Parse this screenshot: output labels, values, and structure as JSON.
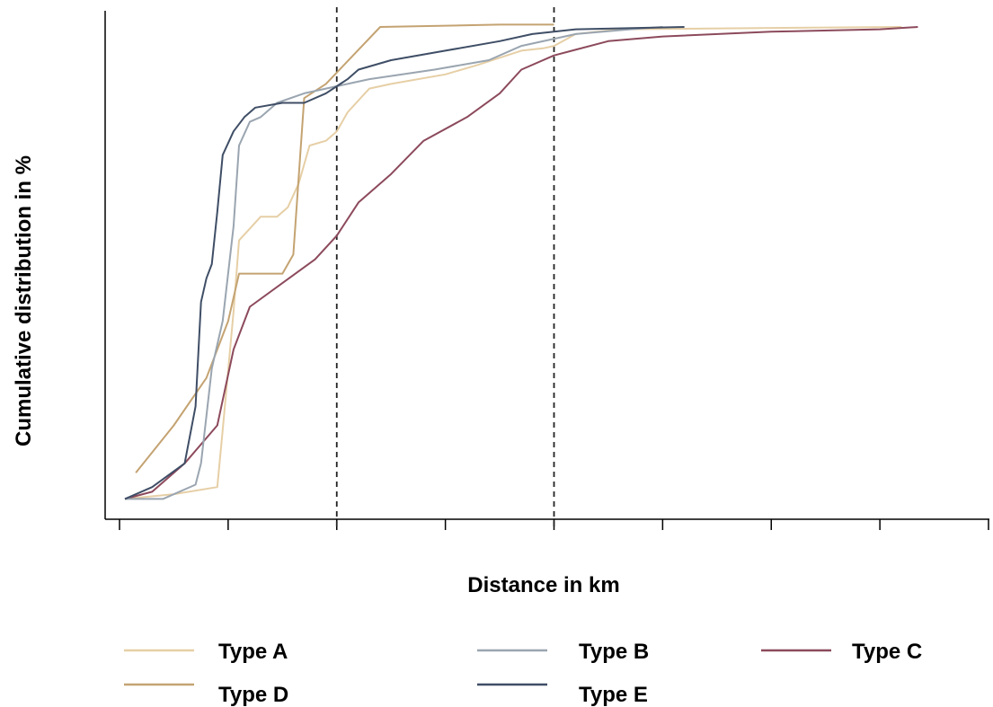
{
  "chart_data": {
    "type": "line",
    "subtype": "cumulative-distribution",
    "title": "",
    "xlabel": "Distance in km",
    "ylabel": "Cumulative distribution in %",
    "x_ticks": 9,
    "x_tick_labels": [],
    "y_tick_labels": [],
    "xlim": [
      0,
      8
    ],
    "ylim": [
      0,
      100
    ],
    "reference_lines_x": [
      2,
      4
    ],
    "grid": false,
    "legend_placement": "bottom",
    "series": [
      {
        "name": "Type A",
        "color": "#E6CFA6",
        "points": [
          [
            0.05,
            0.5
          ],
          [
            0.5,
            1.5
          ],
          [
            0.9,
            3
          ],
          [
            0.95,
            15
          ],
          [
            1.05,
            40
          ],
          [
            1.1,
            55
          ],
          [
            1.3,
            60
          ],
          [
            1.45,
            60
          ],
          [
            1.55,
            62
          ],
          [
            1.65,
            67
          ],
          [
            1.75,
            75
          ],
          [
            1.9,
            76
          ],
          [
            2.0,
            78
          ],
          [
            2.1,
            82
          ],
          [
            2.3,
            87
          ],
          [
            2.5,
            88
          ],
          [
            3.0,
            90
          ],
          [
            3.3,
            92
          ],
          [
            3.7,
            95
          ],
          [
            3.9,
            95.5
          ],
          [
            4.0,
            96
          ],
          [
            4.2,
            98.5
          ],
          [
            4.6,
            99.5
          ],
          [
            6.0,
            99.8
          ],
          [
            7.2,
            100
          ]
        ]
      },
      {
        "name": "Type B",
        "color": "#9AA5B0",
        "points": [
          [
            0.05,
            0.5
          ],
          [
            0.4,
            0.5
          ],
          [
            0.7,
            3.5
          ],
          [
            0.75,
            8
          ],
          [
            0.8,
            18
          ],
          [
            0.85,
            28
          ],
          [
            0.95,
            38
          ],
          [
            1.05,
            58
          ],
          [
            1.1,
            75
          ],
          [
            1.2,
            80
          ],
          [
            1.3,
            81
          ],
          [
            1.45,
            84
          ],
          [
            1.7,
            86
          ],
          [
            2.1,
            88
          ],
          [
            2.3,
            89
          ],
          [
            2.9,
            91
          ],
          [
            3.4,
            93
          ],
          [
            3.7,
            96
          ],
          [
            4.2,
            98.5
          ],
          [
            4.7,
            99.5
          ],
          [
            5.0,
            100
          ]
        ]
      },
      {
        "name": "Type C",
        "color": "#8C4A5C",
        "points": [
          [
            0.05,
            0.5
          ],
          [
            0.3,
            2
          ],
          [
            0.6,
            8
          ],
          [
            0.9,
            16
          ],
          [
            1.05,
            32
          ],
          [
            1.2,
            41
          ],
          [
            1.5,
            46
          ],
          [
            1.8,
            51
          ],
          [
            2.0,
            56
          ],
          [
            2.2,
            63
          ],
          [
            2.5,
            69
          ],
          [
            2.8,
            76
          ],
          [
            3.2,
            81
          ],
          [
            3.5,
            86
          ],
          [
            3.7,
            91
          ],
          [
            4.0,
            94
          ],
          [
            4.5,
            97
          ],
          [
            5.0,
            98
          ],
          [
            6.0,
            99
          ],
          [
            7.0,
            99.5
          ],
          [
            7.35,
            100
          ]
        ]
      },
      {
        "name": "Type D",
        "color": "#C4A372",
        "points": [
          [
            0.15,
            6
          ],
          [
            0.5,
            16
          ],
          [
            0.8,
            26
          ],
          [
            1.0,
            38
          ],
          [
            1.1,
            48
          ],
          [
            1.4,
            48
          ],
          [
            1.5,
            48
          ],
          [
            1.6,
            52
          ],
          [
            1.7,
            85
          ],
          [
            1.9,
            88
          ],
          [
            2.4,
            100
          ],
          [
            3.5,
            100.5
          ],
          [
            4.0,
            100.5
          ]
        ]
      },
      {
        "name": "Type E",
        "color": "#3F4E66",
        "points": [
          [
            0.05,
            0.5
          ],
          [
            0.3,
            3
          ],
          [
            0.6,
            8
          ],
          [
            0.7,
            20
          ],
          [
            0.75,
            42
          ],
          [
            0.8,
            47
          ],
          [
            0.85,
            50
          ],
          [
            0.9,
            61
          ],
          [
            0.95,
            73
          ],
          [
            1.05,
            78
          ],
          [
            1.15,
            81
          ],
          [
            1.25,
            83
          ],
          [
            1.5,
            84
          ],
          [
            1.7,
            84
          ],
          [
            1.9,
            86
          ],
          [
            2.1,
            89
          ],
          [
            2.2,
            91
          ],
          [
            2.5,
            93
          ],
          [
            3.0,
            95
          ],
          [
            3.5,
            97
          ],
          [
            3.8,
            98.5
          ],
          [
            4.2,
            99.5
          ],
          [
            5.2,
            100
          ]
        ]
      }
    ]
  },
  "legend": {
    "items": [
      {
        "label": "Type A",
        "color": "#E6CFA6"
      },
      {
        "label": "Type B",
        "color": "#9AA5B0"
      },
      {
        "label": "Type C",
        "color": "#8C4A5C"
      },
      {
        "label": "Type D",
        "color": "#C4A372"
      },
      {
        "label": "Type E",
        "color": "#3F4E66"
      }
    ]
  }
}
